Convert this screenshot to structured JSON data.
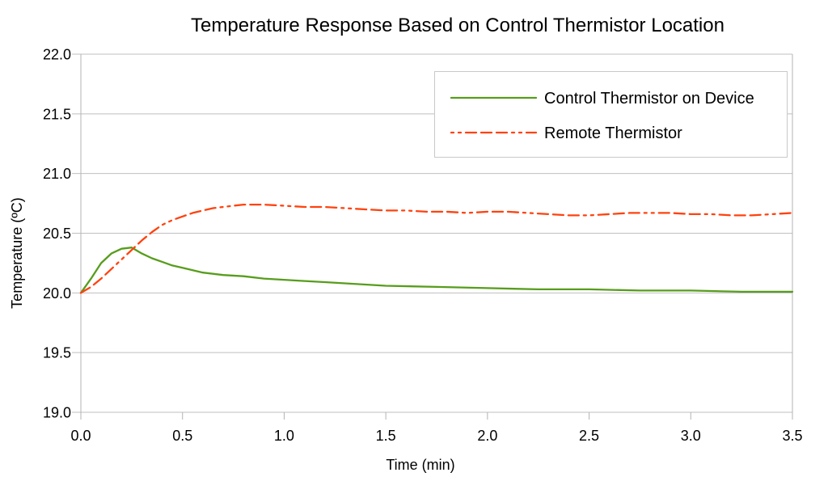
{
  "window": {
    "background_color": "#ffffff"
  },
  "chart_data": {
    "type": "line",
    "title": "Temperature Response Based on Control Thermistor Location",
    "xlabel": "Time (min)",
    "ylabel": "Temperature (ºC)",
    "xlim": [
      0.0,
      3.5
    ],
    "ylim": [
      19.0,
      22.0
    ],
    "x_ticks": [
      0.0,
      0.5,
      1.0,
      1.5,
      2.0,
      2.5,
      3.0,
      3.5
    ],
    "x_tick_labels": [
      "0.0",
      "0.5",
      "1.0",
      "1.5",
      "2.0",
      "2.5",
      "3.0",
      "3.5"
    ],
    "y_ticks": [
      19.0,
      19.5,
      20.0,
      20.5,
      21.0,
      21.5,
      22.0
    ],
    "y_tick_labels": [
      "19.0",
      "19.5",
      "20.0",
      "20.5",
      "21.0",
      "21.5",
      "22.0"
    ],
    "grid": "horizontal-only",
    "grid_color": "#bfbfbf",
    "axis_color": "#b3b3b3",
    "legend_position": "top-right",
    "legend_border_color": "#c9c9c9",
    "series": [
      {
        "name": "Control Thermistor on Device",
        "color": "#579d1c",
        "style": "solid",
        "points": [
          [
            0.0,
            20.0
          ],
          [
            0.05,
            20.12
          ],
          [
            0.1,
            20.25
          ],
          [
            0.15,
            20.33
          ],
          [
            0.2,
            20.37
          ],
          [
            0.25,
            20.38
          ],
          [
            0.3,
            20.33
          ],
          [
            0.35,
            20.29
          ],
          [
            0.4,
            20.26
          ],
          [
            0.45,
            20.23
          ],
          [
            0.5,
            20.21
          ],
          [
            0.6,
            20.17
          ],
          [
            0.7,
            20.15
          ],
          [
            0.8,
            20.14
          ],
          [
            0.9,
            20.12
          ],
          [
            1.0,
            20.11
          ],
          [
            1.1,
            20.1
          ],
          [
            1.2,
            20.09
          ],
          [
            1.3,
            20.08
          ],
          [
            1.4,
            20.07
          ],
          [
            1.5,
            20.06
          ],
          [
            1.75,
            20.05
          ],
          [
            2.0,
            20.04
          ],
          [
            2.25,
            20.03
          ],
          [
            2.5,
            20.03
          ],
          [
            2.75,
            20.02
          ],
          [
            3.0,
            20.02
          ],
          [
            3.25,
            20.01
          ],
          [
            3.5,
            20.01
          ]
        ]
      },
      {
        "name": "Remote Thermistor",
        "color": "#ff420e",
        "style": "dash-dash-dot-dot",
        "points": [
          [
            0.0,
            20.0
          ],
          [
            0.05,
            20.05
          ],
          [
            0.1,
            20.12
          ],
          [
            0.15,
            20.2
          ],
          [
            0.2,
            20.28
          ],
          [
            0.25,
            20.36
          ],
          [
            0.3,
            20.44
          ],
          [
            0.35,
            20.51
          ],
          [
            0.4,
            20.57
          ],
          [
            0.45,
            20.61
          ],
          [
            0.5,
            20.64
          ],
          [
            0.55,
            20.67
          ],
          [
            0.6,
            20.69
          ],
          [
            0.65,
            20.71
          ],
          [
            0.7,
            20.72
          ],
          [
            0.75,
            20.73
          ],
          [
            0.8,
            20.74
          ],
          [
            0.9,
            20.74
          ],
          [
            1.0,
            20.73
          ],
          [
            1.1,
            20.72
          ],
          [
            1.2,
            20.72
          ],
          [
            1.3,
            20.71
          ],
          [
            1.4,
            20.7
          ],
          [
            1.5,
            20.69
          ],
          [
            1.6,
            20.69
          ],
          [
            1.7,
            20.68
          ],
          [
            1.8,
            20.68
          ],
          [
            1.9,
            20.67
          ],
          [
            2.0,
            20.68
          ],
          [
            2.1,
            20.68
          ],
          [
            2.2,
            20.67
          ],
          [
            2.3,
            20.66
          ],
          [
            2.4,
            20.65
          ],
          [
            2.5,
            20.65
          ],
          [
            2.6,
            20.66
          ],
          [
            2.7,
            20.67
          ],
          [
            2.8,
            20.67
          ],
          [
            2.9,
            20.67
          ],
          [
            3.0,
            20.66
          ],
          [
            3.1,
            20.66
          ],
          [
            3.2,
            20.65
          ],
          [
            3.3,
            20.65
          ],
          [
            3.4,
            20.66
          ],
          [
            3.5,
            20.67
          ]
        ]
      }
    ]
  }
}
